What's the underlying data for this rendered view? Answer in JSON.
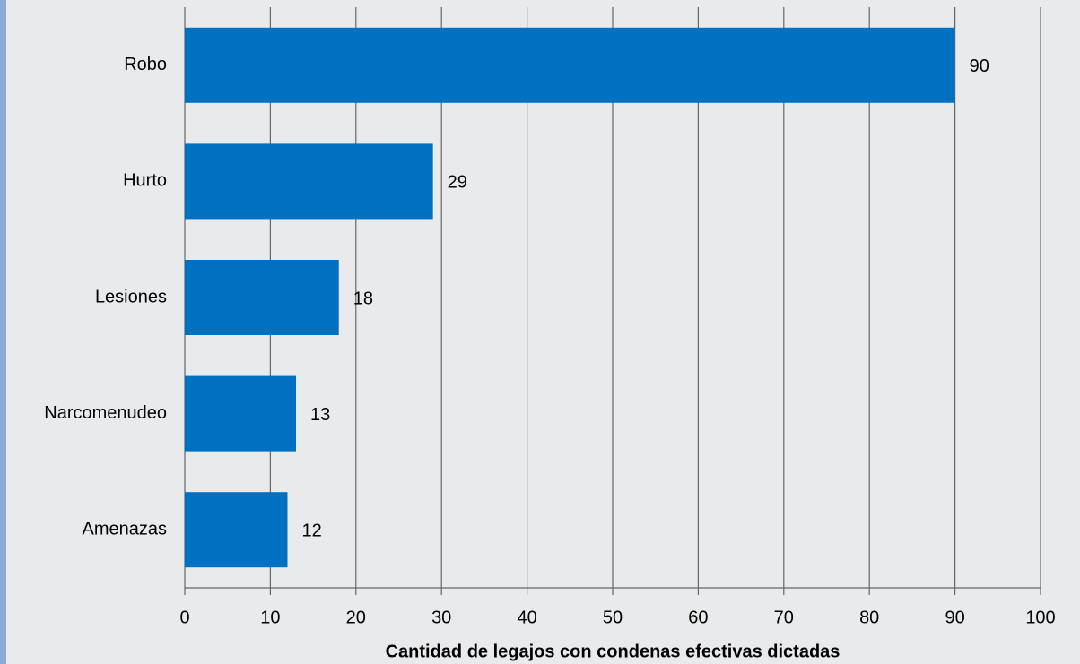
{
  "chart_data": {
    "type": "hbar",
    "x_label": "Cantidad de legajos con condenas efectivas dictadas",
    "categories": [
      "Robo",
      "Hurto",
      "Lesiones",
      "Narcomenudeo",
      "Amenazas"
    ],
    "values": [
      90,
      29,
      18,
      13,
      12
    ],
    "color": "#0070c0",
    "xlim": [
      0,
      100
    ],
    "xticks": [
      0,
      10,
      20,
      30,
      40,
      50,
      60,
      70,
      80,
      90,
      100
    ],
    "grid": true
  }
}
